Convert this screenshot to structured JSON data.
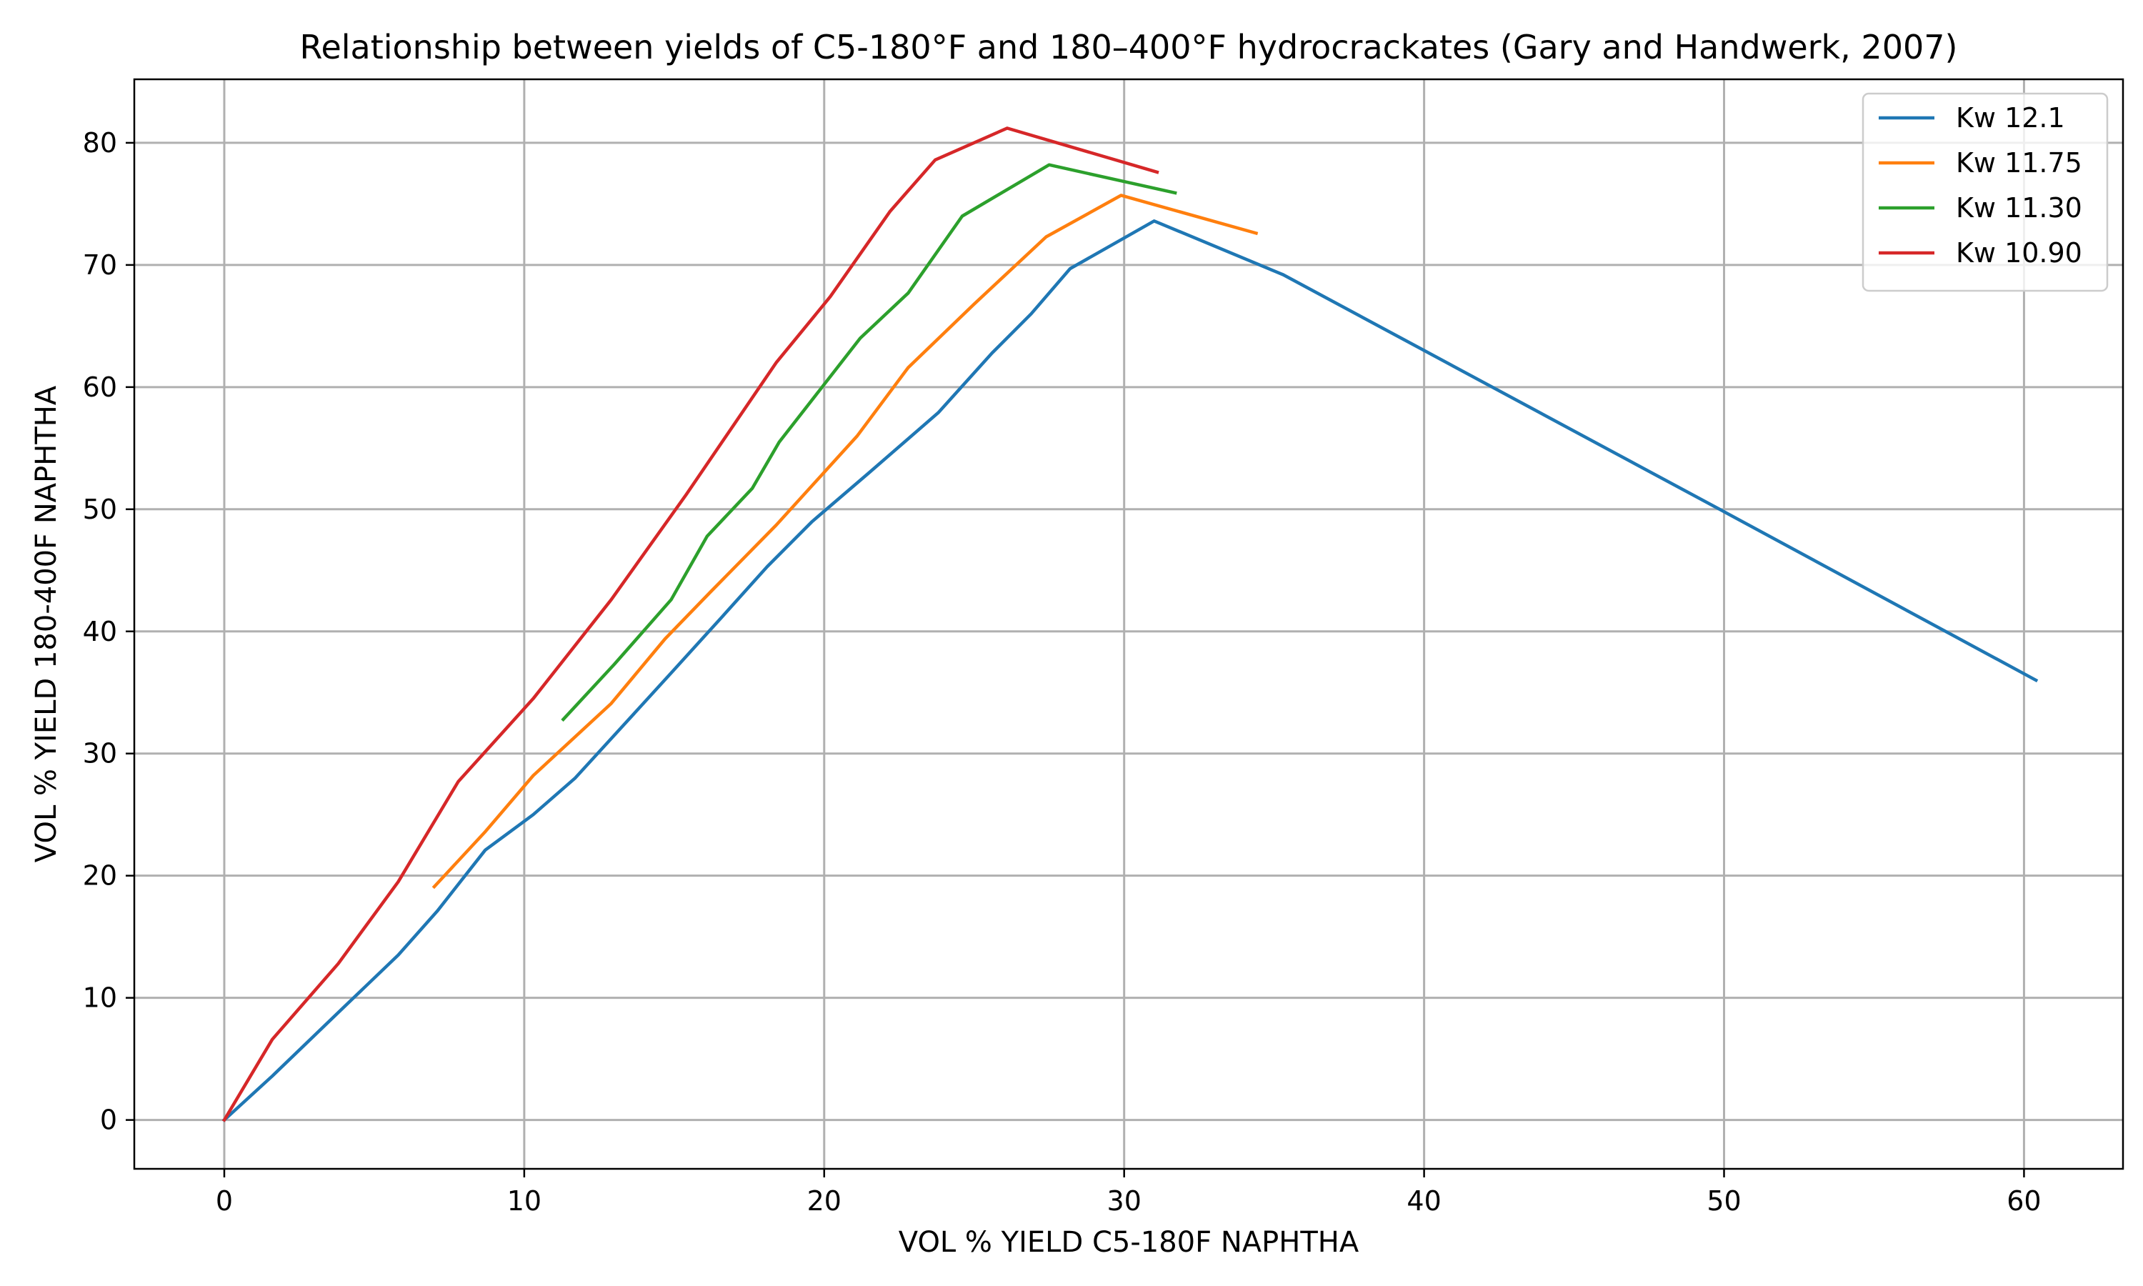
{
  "chart_data": {
    "type": "line",
    "title": "Relationship between yields of C5-180°F and 180–400°F hydrocrackates (Gary and Handwerk, 2007)",
    "xlabel": "VOL % YIELD C5-180F NAPHTHA",
    "ylabel": "VOL % YIELD 180-400F NAPHTHA",
    "xlim": [
      -3,
      63.3
    ],
    "ylim": [
      -4,
      85.2
    ],
    "xticks": [
      0,
      10,
      20,
      30,
      40,
      50,
      60
    ],
    "yticks": [
      0,
      10,
      20,
      30,
      40,
      50,
      60,
      70,
      80
    ],
    "grid": true,
    "legend_position": "top-right",
    "series": [
      {
        "name": "Kw 12.1",
        "color": "#1f77b4",
        "x": [
          0,
          1.6,
          3.8,
          5.8,
          7.1,
          8.7,
          10.3,
          11.7,
          13.3,
          14.9,
          16.6,
          18.1,
          19.6,
          21.5,
          23.8,
          25.6,
          26.9,
          28.2,
          31.0,
          35.3,
          40.0,
          50.0,
          60.4
        ],
        "y": [
          0,
          3.6,
          8.8,
          13.5,
          17.1,
          22.1,
          25.0,
          28.0,
          32.3,
          36.6,
          41.2,
          45.3,
          49.0,
          53.0,
          57.9,
          62.8,
          66.0,
          69.7,
          73.6,
          69.2,
          63.0,
          49.8,
          36.0
        ]
      },
      {
        "name": "Kw 11.75",
        "color": "#ff7f0e",
        "x": [
          7.0,
          8.7,
          10.3,
          12.9,
          14.7,
          16.2,
          18.4,
          21.1,
          22.8,
          25.0,
          27.4,
          29.9,
          34.4
        ],
        "y": [
          19.1,
          23.6,
          28.2,
          34.1,
          39.4,
          43.2,
          48.7,
          56.0,
          61.6,
          66.8,
          72.3,
          75.7,
          72.6
        ]
      },
      {
        "name": "Kw 11.30",
        "color": "#2ca02c",
        "x": [
          11.3,
          13.0,
          14.9,
          16.1,
          17.6,
          18.5,
          21.2,
          22.8,
          24.6,
          27.5,
          31.7
        ],
        "y": [
          32.8,
          37.3,
          42.6,
          47.8,
          51.7,
          55.5,
          64.0,
          67.7,
          74.0,
          78.2,
          75.9
        ]
      },
      {
        "name": "Kw 10.90",
        "color": "#d62728",
        "x": [
          0,
          1.6,
          3.8,
          5.8,
          7.8,
          10.3,
          12.9,
          15.4,
          18.4,
          20.2,
          22.2,
          23.7,
          26.1,
          31.1
        ],
        "y": [
          0,
          6.6,
          12.8,
          19.5,
          27.7,
          34.5,
          42.6,
          51.2,
          62.0,
          67.4,
          74.4,
          78.6,
          81.2,
          77.6
        ]
      }
    ]
  }
}
